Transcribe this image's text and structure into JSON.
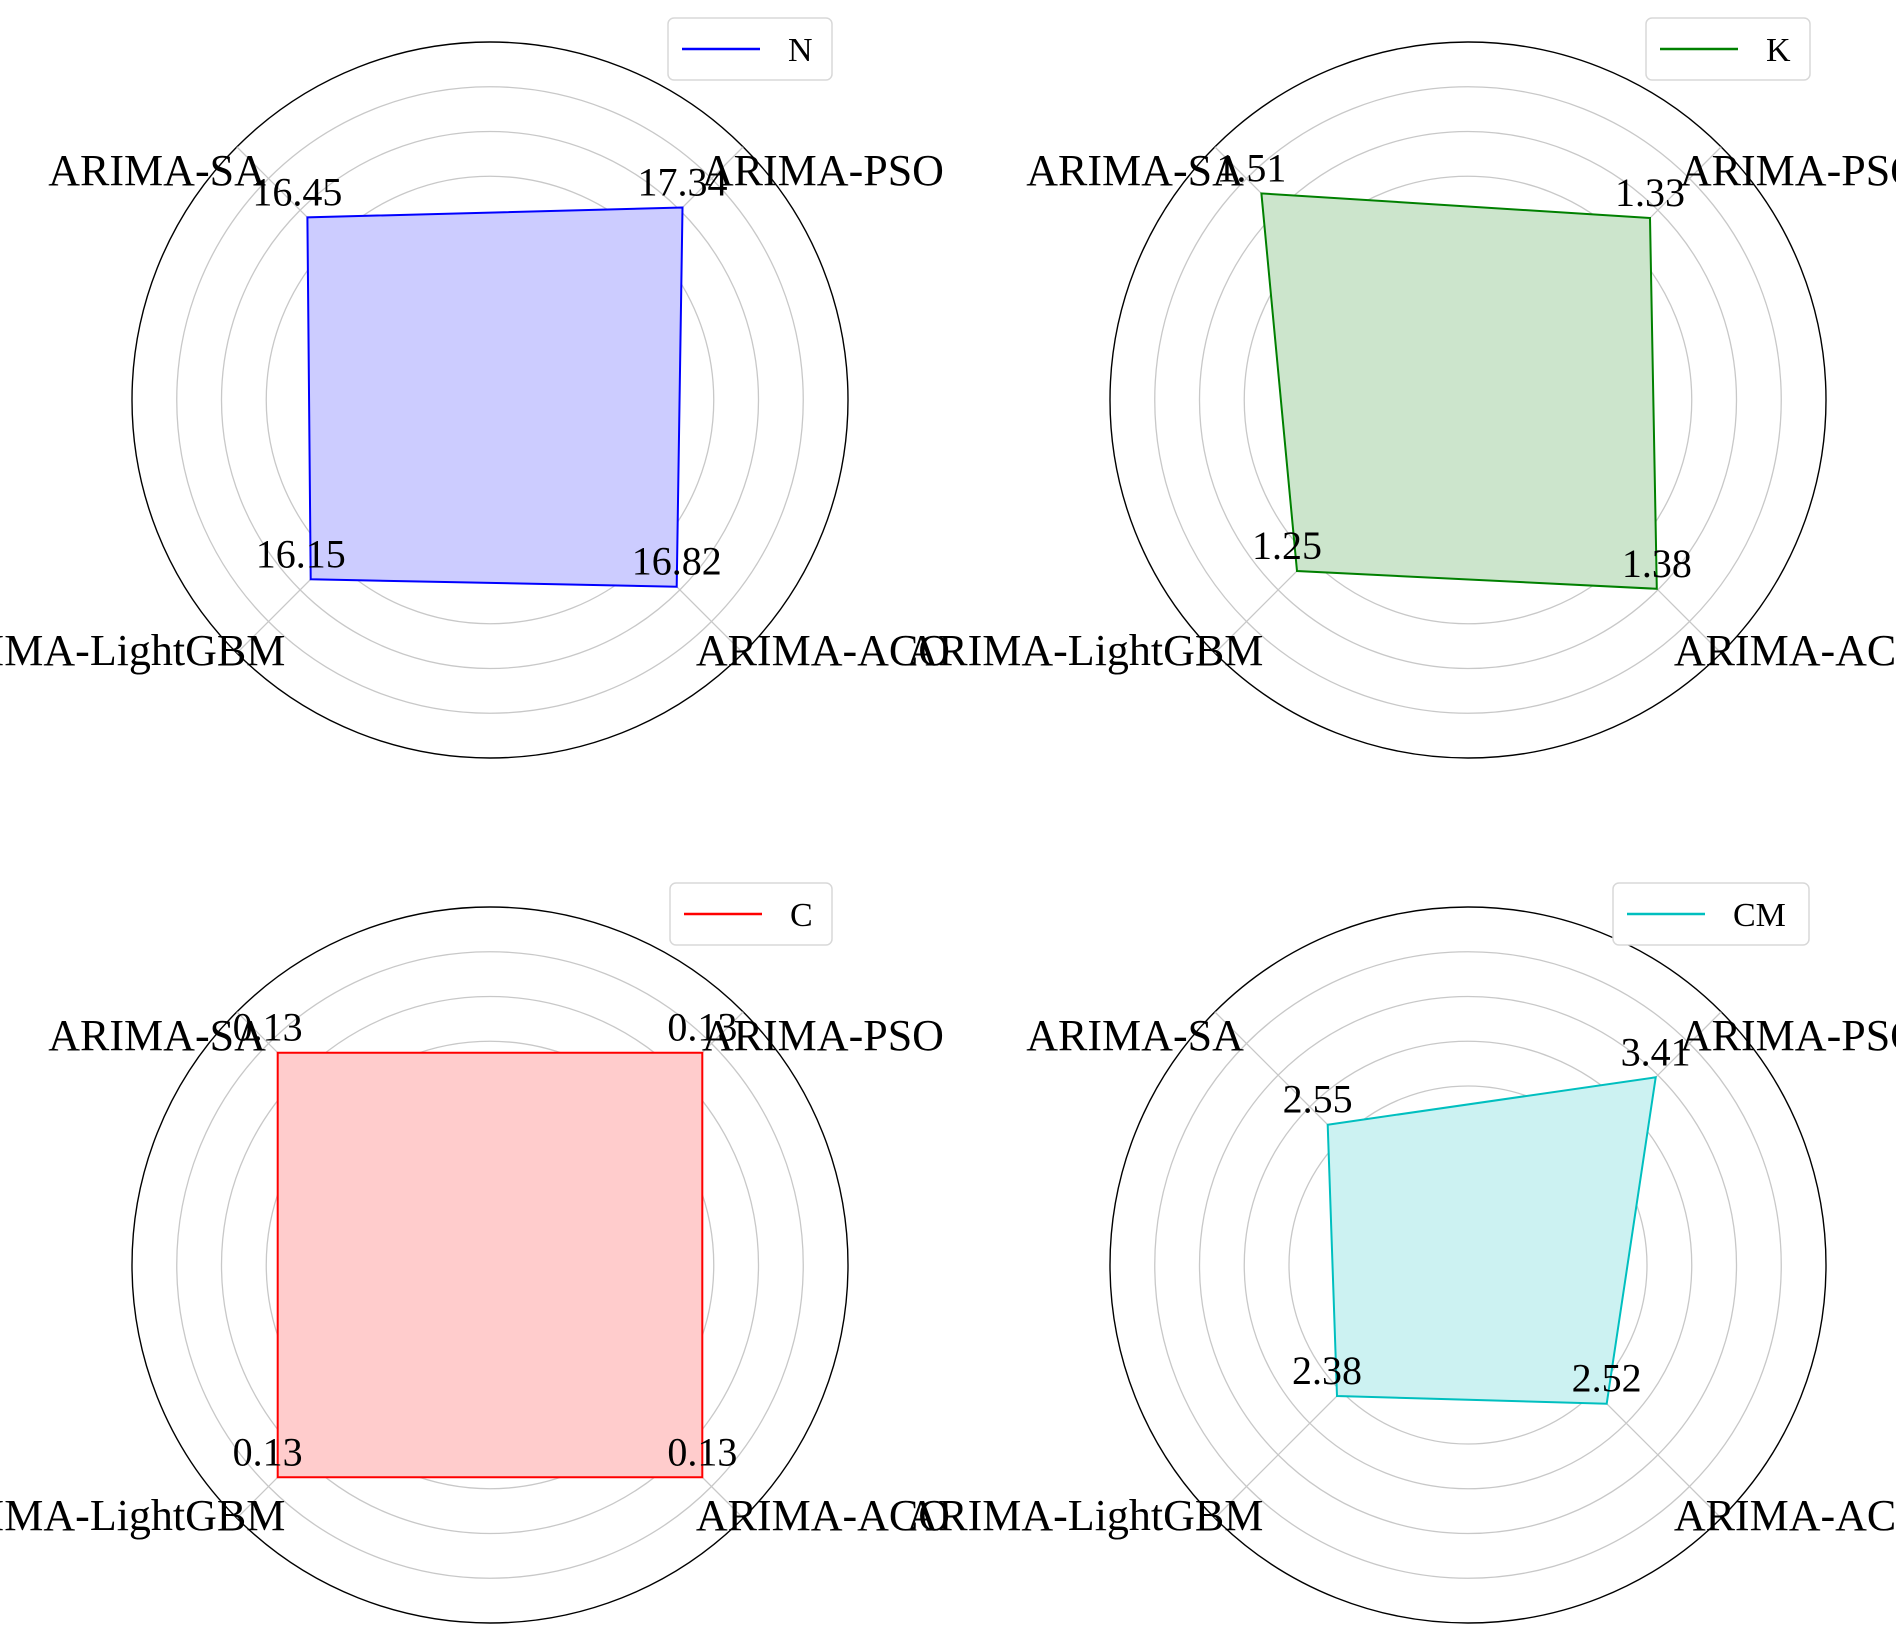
{
  "chart_data": [
    {
      "type": "radar",
      "categories": [
        "ARIMA-PSO",
        "ARIMA-SA",
        "ARIMA-LightGBM",
        "ARIMA-ACO"
      ],
      "series": [
        {
          "name": "N",
          "values": [
            17.34,
            16.45,
            16.15,
            16.82
          ],
          "color": "#0000ff",
          "fill": "#ccccff"
        }
      ],
      "value_labels": [
        "17.34",
        "16.45",
        "16.15",
        "16.82"
      ],
      "rmax": 22.8,
      "legend_position": "top-right",
      "grid": true
    },
    {
      "type": "radar",
      "categories": [
        "ARIMA-PSO",
        "ARIMA-SA",
        "ARIMA-LightGBM",
        "ARIMA-ACO"
      ],
      "series": [
        {
          "name": "K",
          "values": [
            1.33,
            1.51,
            1.25,
            1.38
          ],
          "color": "#008000",
          "fill": "#cce5cc"
        }
      ],
      "value_labels": [
        "1.33",
        "1.51",
        "1.25",
        "1.38"
      ],
      "rmax": 1.85,
      "legend_position": "top-right",
      "grid": true
    },
    {
      "type": "radar",
      "categories": [
        "ARIMA-PSO",
        "ARIMA-SA",
        "ARIMA-LightGBM",
        "ARIMA-ACO"
      ],
      "series": [
        {
          "name": "C",
          "values": [
            0.13,
            0.13,
            0.13,
            0.13
          ],
          "color": "#ff0000",
          "fill": "#ffcccc"
        }
      ],
      "value_labels": [
        "0.13",
        "0.13",
        "0.13",
        "0.13"
      ],
      "rmax": 0.155,
      "legend_position": "top-right",
      "grid": true
    },
    {
      "type": "radar",
      "categories": [
        "ARIMA-PSO",
        "ARIMA-SA",
        "ARIMA-LightGBM",
        "ARIMA-ACO"
      ],
      "series": [
        {
          "name": "CM",
          "values": [
            3.41,
            2.55,
            2.38,
            2.52
          ],
          "color": "#00bfbf",
          "fill": "#ccf2f2"
        }
      ],
      "value_labels": [
        "3.41",
        "2.55",
        "2.38",
        "2.52"
      ],
      "rmax": 4.6,
      "legend_position": "top-right",
      "grid": true
    }
  ]
}
